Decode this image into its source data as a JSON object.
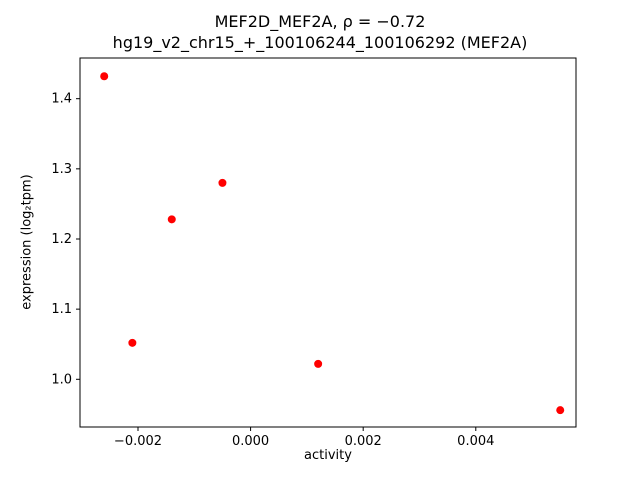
{
  "chart_data": {
    "type": "scatter",
    "title": "MEF2D_MEF2A, ρ = −0.72",
    "subtitle": "hg19_v2_chr15_+_100106244_100106292 (MEF2A)",
    "xlabel": "activity",
    "ylabel": "expression (log₂tpm)",
    "marker_color": "#ff0000",
    "axes_color": "#000000",
    "legend": "none",
    "grid": false,
    "xlim": [
      -0.00303,
      0.00578
    ],
    "ylim": [
      0.932,
      1.458
    ],
    "x_ticks": [
      {
        "value": -0.002,
        "label": "−0.002"
      },
      {
        "value": 0.0,
        "label": "0.000"
      },
      {
        "value": 0.002,
        "label": "0.002"
      },
      {
        "value": 0.004,
        "label": "0.004"
      }
    ],
    "y_ticks": [
      {
        "value": 1.0,
        "label": "1.0"
      },
      {
        "value": 1.1,
        "label": "1.1"
      },
      {
        "value": 1.2,
        "label": "1.2"
      },
      {
        "value": 1.3,
        "label": "1.3"
      },
      {
        "value": 1.4,
        "label": "1.4"
      }
    ],
    "points": [
      {
        "x": -0.0026,
        "y": 1.432
      },
      {
        "x": -0.0021,
        "y": 1.052
      },
      {
        "x": -0.0014,
        "y": 1.228
      },
      {
        "x": -0.0005,
        "y": 1.28
      },
      {
        "x": 0.0012,
        "y": 1.022
      },
      {
        "x": 0.0055,
        "y": 0.956
      }
    ]
  }
}
